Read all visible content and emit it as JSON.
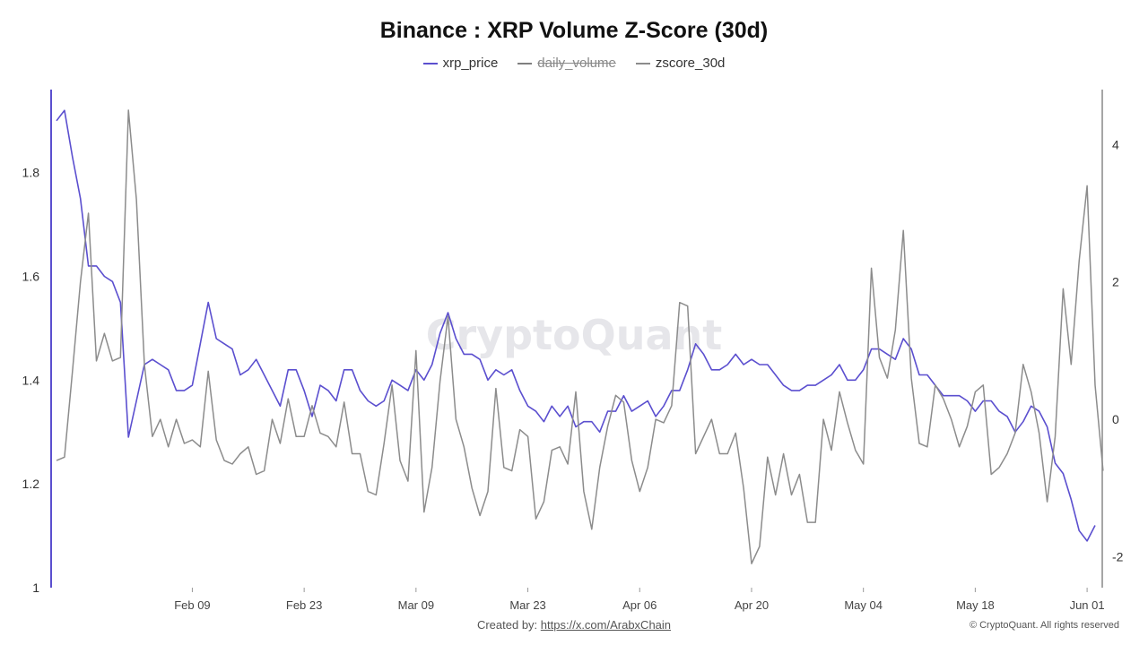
{
  "title": "Binance : XRP Volume Z-Score (30d)",
  "watermark": "CryptoQuant",
  "footer": {
    "created_by_label": "Created by:",
    "created_by_link": "https://x.com/ArabxChain",
    "copyright": "© CryptoQuant. All rights reserved"
  },
  "legend": [
    {
      "name": "xrp_price",
      "color": "#5b4fcf",
      "hidden": false
    },
    {
      "name": "daily_volume",
      "color": "#7f7f7f",
      "hidden": true
    },
    {
      "name": "zscore_30d",
      "color": "#8c8c8c",
      "hidden": false
    }
  ],
  "chart_data": {
    "type": "line",
    "x_tick_labels": [
      "Feb 09",
      "Feb 23",
      "Mar 09",
      "Mar 23",
      "Apr 06",
      "Apr 20",
      "May 04",
      "May 18",
      "Jun 01"
    ],
    "y_left": {
      "ticks": [
        1,
        1.2,
        1.4,
        1.6,
        1.8
      ],
      "ylim": [
        1,
        1.96
      ]
    },
    "y_right": {
      "ticks": [
        -2,
        0,
        2,
        4
      ],
      "ylim": [
        -2.45,
        4.8
      ]
    },
    "grid": false,
    "legend_position": "top",
    "series": [
      {
        "name": "xrp_price",
        "axis": "left",
        "color": "#5b4fcf",
        "values": [
          1.9,
          1.92,
          1.83,
          1.75,
          1.62,
          1.62,
          1.6,
          1.59,
          1.55,
          1.29,
          1.36,
          1.43,
          1.44,
          1.43,
          1.42,
          1.38,
          1.38,
          1.39,
          1.47,
          1.55,
          1.48,
          1.47,
          1.46,
          1.41,
          1.42,
          1.44,
          1.41,
          1.38,
          1.35,
          1.42,
          1.42,
          1.38,
          1.33,
          1.39,
          1.38,
          1.36,
          1.42,
          1.42,
          1.38,
          1.36,
          1.35,
          1.36,
          1.4,
          1.39,
          1.38,
          1.42,
          1.4,
          1.43,
          1.49,
          1.53,
          1.48,
          1.45,
          1.45,
          1.44,
          1.4,
          1.42,
          1.41,
          1.42,
          1.38,
          1.35,
          1.34,
          1.32,
          1.35,
          1.33,
          1.35,
          1.31,
          1.32,
          1.32,
          1.3,
          1.34,
          1.34,
          1.37,
          1.34,
          1.35,
          1.36,
          1.33,
          1.35,
          1.38,
          1.38,
          1.42,
          1.47,
          1.45,
          1.42,
          1.42,
          1.43,
          1.45,
          1.43,
          1.44,
          1.43,
          1.43,
          1.41,
          1.39,
          1.38,
          1.38,
          1.39,
          1.39,
          1.4,
          1.41,
          1.43,
          1.4,
          1.4,
          1.42,
          1.46,
          1.46,
          1.45,
          1.44,
          1.48,
          1.46,
          1.41,
          1.41,
          1.39,
          1.37,
          1.37,
          1.37,
          1.36,
          1.34,
          1.36,
          1.36,
          1.34,
          1.33,
          1.3,
          1.32,
          1.35,
          1.34,
          1.31,
          1.24,
          1.22,
          1.17,
          1.11,
          1.09,
          1.12
        ]
      },
      {
        "name": "zscore_30d",
        "axis": "right",
        "color": "#8c8c8c",
        "values": [
          -0.6,
          -0.55,
          0.7,
          2.0,
          3.0,
          0.85,
          1.25,
          0.85,
          0.9,
          4.5,
          3.2,
          0.8,
          -0.25,
          0.0,
          -0.4,
          0.0,
          -0.35,
          -0.3,
          -0.4,
          0.7,
          -0.3,
          -0.6,
          -0.65,
          -0.5,
          -0.4,
          -0.8,
          -0.75,
          0.0,
          -0.35,
          0.3,
          -0.25,
          -0.25,
          0.2,
          -0.2,
          -0.25,
          -0.4,
          0.25,
          -0.5,
          -0.5,
          -1.05,
          -1.1,
          -0.35,
          0.5,
          -0.6,
          -0.9,
          1.0,
          -1.35,
          -0.7,
          0.55,
          1.5,
          0.0,
          -0.4,
          -1.0,
          -1.4,
          -1.05,
          0.45,
          -0.7,
          -0.75,
          -0.15,
          -0.25,
          -1.45,
          -1.2,
          -0.45,
          -0.4,
          -0.65,
          0.4,
          -1.05,
          -1.6,
          -0.7,
          -0.1,
          0.35,
          0.25,
          -0.6,
          -1.05,
          -0.7,
          0.0,
          -0.05,
          0.2,
          1.7,
          1.65,
          -0.5,
          -0.25,
          0.0,
          -0.5,
          -0.5,
          -0.2,
          -1.0,
          -2.1,
          -1.85,
          -0.55,
          -1.1,
          -0.5,
          -1.1,
          -0.8,
          -1.5,
          -1.5,
          0.0,
          -0.45,
          0.4,
          -0.05,
          -0.45,
          -0.65,
          2.2,
          0.9,
          0.6,
          1.3,
          2.75,
          0.6,
          -0.35,
          -0.4,
          0.5,
          0.3,
          0.0,
          -0.4,
          -0.1,
          0.4,
          0.5,
          -0.8,
          -0.7,
          -0.5,
          -0.2,
          0.8,
          0.4,
          -0.2,
          -1.2,
          -0.25,
          1.9,
          0.8,
          2.3,
          3.4,
          0.5,
          -0.75
        ]
      }
    ]
  }
}
